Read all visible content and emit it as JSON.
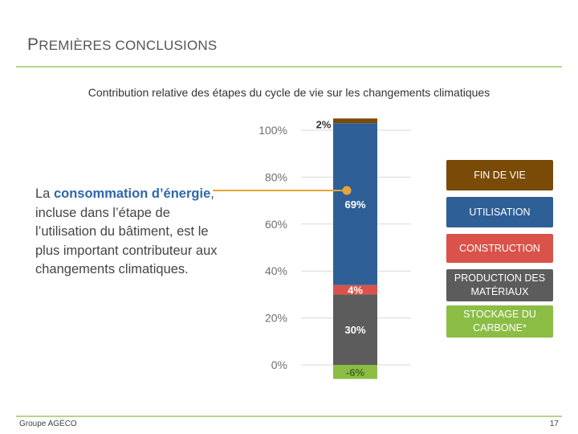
{
  "header": {
    "title_initial": "P",
    "title_rest": "REMIÈRES CONCLUSIONS"
  },
  "callout": {
    "pre": "La ",
    "highlight1": "consommation",
    "mid": " ",
    "highlight2": "d’énergie",
    "post": ", incluse dans l’étape de l’utilisation du bâtiment, est le plus important contributeur aux changements climatiques."
  },
  "legend": [
    {
      "label": "FIN DE VIE",
      "color": "#7a4a07"
    },
    {
      "label": "UTILISATION",
      "color": "#2e5f97"
    },
    {
      "label": "CONSTRUCTION",
      "color": "#d9534a"
    },
    {
      "label": "PRODUCTION DES MATÉRIAUX",
      "color": "#5c5c5c"
    },
    {
      "label": "STOCKAGE DU CARBONE*",
      "color": "#8bbd45"
    }
  ],
  "footer": {
    "left": "Groupe AGÉCO",
    "page": "17"
  },
  "colors": {
    "accent_rule": "#b9d28c",
    "callout_line": "#e8a33a"
  },
  "chart_data": {
    "type": "bar",
    "title": "Contribution relative des étapes du cycle de vie sur les changements climatiques",
    "ylim": [
      0,
      100
    ],
    "yticks": [
      "0%",
      "20%",
      "40%",
      "60%",
      "80%",
      "100%"
    ],
    "grid": true,
    "legend_position": "right",
    "series": [
      {
        "name": "STOCKAGE DU CARBONE*",
        "value": -6,
        "label": "-6%",
        "color": "#8bbd45",
        "label_color": "#4a6a1f"
      },
      {
        "name": "PRODUCTION DES MATÉRIAUX",
        "value": 30,
        "label": "30%",
        "color": "#5c5c5c",
        "label_color": "#ffffff"
      },
      {
        "name": "CONSTRUCTION",
        "value": 4,
        "label": "4%",
        "color": "#d9534a",
        "label_color": "#ffffff"
      },
      {
        "name": "UTILISATION",
        "value": 69,
        "label": "69%",
        "color": "#2e5f97",
        "label_color": "#ffffff"
      },
      {
        "name": "FIN DE VIE",
        "value": 2,
        "label": "2%",
        "color": "#7a4a07",
        "label_color": "#333333"
      }
    ]
  }
}
